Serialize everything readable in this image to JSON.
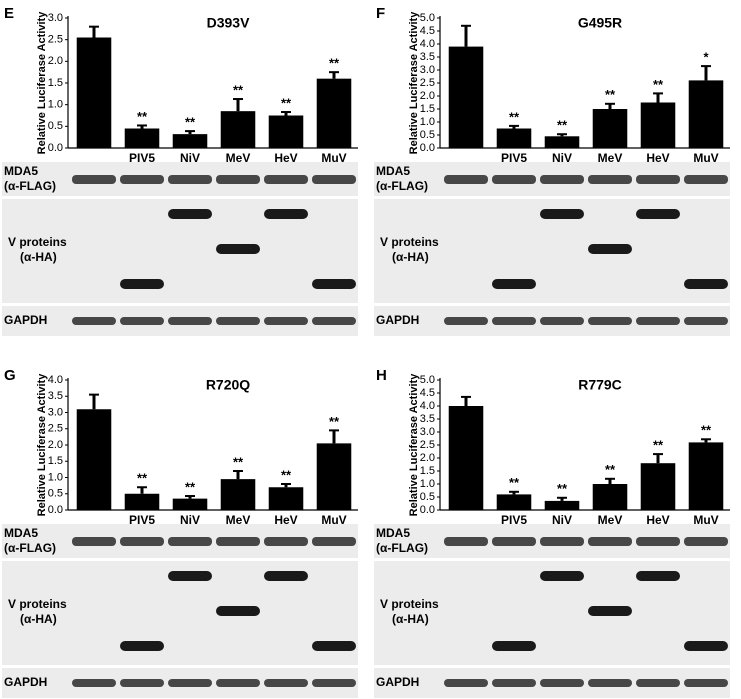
{
  "chart_data": [
    {
      "type": "bar",
      "panel": "E",
      "title": "D393V",
      "ylabel": "Relative Luciferase Activity",
      "categories": [
        null,
        "PIV5",
        "NiV",
        "MeV",
        "HeV",
        "MuV"
      ],
      "values": [
        2.55,
        0.45,
        0.32,
        0.85,
        0.75,
        1.6
      ],
      "errors": [
        0.25,
        0.07,
        0.07,
        0.28,
        0.08,
        0.15
      ],
      "significance": [
        null,
        "**",
        "**",
        "**",
        "**",
        "**"
      ],
      "color": "#000000",
      "ylim": [
        0,
        3
      ],
      "yticks": [
        {
          "value": 0,
          "label": "0.0"
        },
        0.5,
        {
          "value": 1,
          "label": "1.0"
        },
        1.5,
        {
          "value": 2,
          "label": "2.0"
        },
        2.5,
        {
          "value": 3,
          "label": "3.0"
        }
      ]
    },
    {
      "type": "bar",
      "panel": "F",
      "title": "G495R",
      "ylabel": "Relative Luciferase Activity",
      "categories": [
        null,
        "PIV5",
        "NiV",
        "MeV",
        "HeV",
        "MuV"
      ],
      "values": [
        3.9,
        0.75,
        0.45,
        1.5,
        1.75,
        2.6
      ],
      "errors": [
        0.8,
        0.1,
        0.08,
        0.2,
        0.35,
        0.55
      ],
      "significance": [
        null,
        "**",
        "**",
        "**",
        "**",
        "*"
      ],
      "color": "#000000",
      "ylim": [
        0,
        5
      ],
      "yticks": [
        {
          "value": 0,
          "label": "0.0"
        },
        0.5,
        {
          "value": 1,
          "label": "1.0"
        },
        1.5,
        {
          "value": 2,
          "label": "2.0"
        },
        2.5,
        {
          "value": 3,
          "label": "3.0"
        },
        3.5,
        {
          "value": 4,
          "label": "4.0"
        },
        4.5,
        {
          "value": 5,
          "label": "5.0"
        }
      ]
    },
    {
      "type": "bar",
      "panel": "G",
      "title": "R720Q",
      "ylabel": "Relative Luciferase Activity",
      "categories": [
        null,
        "PIV5",
        "NiV",
        "MeV",
        "HeV",
        "MuV"
      ],
      "values": [
        3.1,
        0.5,
        0.35,
        0.95,
        0.7,
        2.05
      ],
      "errors": [
        0.45,
        0.2,
        0.08,
        0.25,
        0.1,
        0.4
      ],
      "significance": [
        null,
        "**",
        "**",
        "**",
        "**",
        "**"
      ],
      "color": "#000000",
      "ylim": [
        0,
        4
      ],
      "yticks": [
        {
          "value": 0,
          "label": "0.0"
        },
        0.5,
        {
          "value": 1,
          "label": "1.0"
        },
        1.5,
        {
          "value": 2,
          "label": "2.0"
        },
        2.5,
        {
          "value": 3,
          "label": "3.0"
        },
        3.5,
        {
          "value": 4,
          "label": "4.0"
        }
      ]
    },
    {
      "type": "bar",
      "panel": "H",
      "title": "R779C",
      "ylabel": "Relative Luciferase Activity",
      "categories": [
        null,
        "PIV5",
        "NiV",
        "MeV",
        "HeV",
        "MuV"
      ],
      "values": [
        4.0,
        0.6,
        0.35,
        1.0,
        1.8,
        2.6
      ],
      "errors": [
        0.35,
        0.1,
        0.12,
        0.2,
        0.35,
        0.12
      ],
      "significance": [
        null,
        "**",
        "**",
        "**",
        "**",
        "**"
      ],
      "color": "#000000",
      "ylim": [
        0,
        5
      ],
      "yticks": [
        {
          "value": 0,
          "label": "0.0"
        },
        0.5,
        {
          "value": 1,
          "label": "1.0"
        },
        1.5,
        {
          "value": 2,
          "label": "2.0"
        },
        2.5,
        {
          "value": 3,
          "label": "3.0"
        },
        3.5,
        {
          "value": 4,
          "label": "4.0"
        },
        4.5,
        {
          "value": 5,
          "label": "5.0"
        }
      ]
    }
  ],
  "blots": {
    "mda5": "MDA5",
    "flag": "(α-FLAG)",
    "v_proteins": "V proteins",
    "ha": "(α-HA)",
    "gapdh": "GAPDH"
  }
}
